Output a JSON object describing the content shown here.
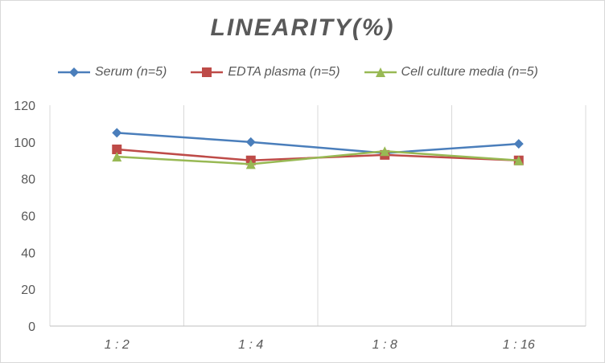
{
  "chart_data": {
    "type": "line",
    "title": "LINEARITY(%)",
    "xlabel": "",
    "ylabel": "",
    "categories": [
      "1:2",
      "1:4",
      "1:8",
      "1:16"
    ],
    "ylim": [
      0,
      120
    ],
    "yticks": [
      0,
      20,
      40,
      60,
      80,
      100,
      120
    ],
    "grid": "vertical",
    "legend_position": "top",
    "series": [
      {
        "name": "Serum (n=5)",
        "color": "#4a7ebb",
        "marker": "diamond",
        "values": [
          105,
          100,
          94,
          99
        ]
      },
      {
        "name": "EDTA plasma (n=5)",
        "color": "#be4b48",
        "marker": "square",
        "values": [
          96,
          90,
          93,
          90
        ]
      },
      {
        "name": "Cell culture media (n=5)",
        "color": "#98b954",
        "marker": "triangle",
        "values": [
          92,
          88,
          95,
          90
        ]
      }
    ]
  }
}
